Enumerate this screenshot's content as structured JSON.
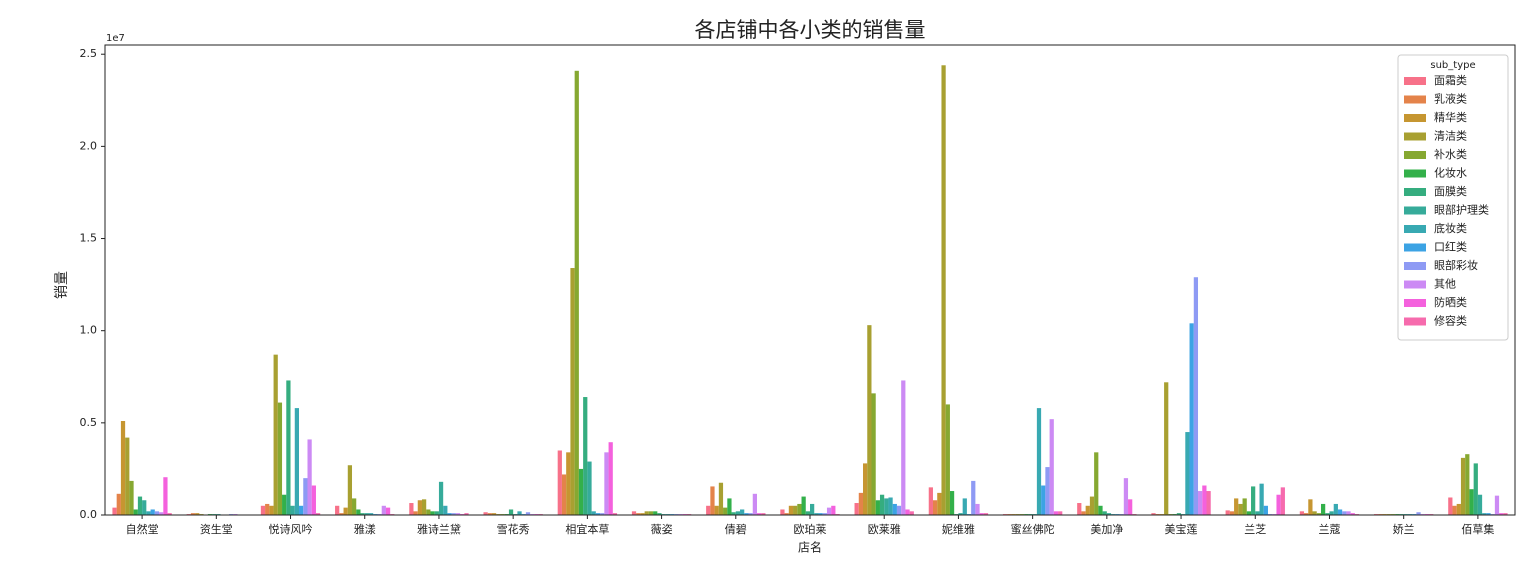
{
  "chart_data": {
    "type": "bar",
    "title": "各店铺中各小类的销售量",
    "xlabel": "店名",
    "ylabel": "销量",
    "y_offset_label": "1e7",
    "legend_title": "sub_type",
    "legend": "upper right",
    "grid": false,
    "ylim": [
      0,
      2.55
    ],
    "yticks": [
      {
        "value": 0,
        "label": "0.0"
      },
      0.5,
      {
        "value": 1,
        "label": "1.0"
      },
      1.5,
      {
        "value": 2,
        "label": "2.0"
      },
      2.5
    ],
    "categories": [
      "自然堂",
      "资生堂",
      "悦诗风吟",
      "雅漾",
      "雅诗兰黛",
      "雪花秀",
      "相宜本草",
      "薇姿",
      "倩碧",
      "欧珀莱",
      "欧莱雅",
      "妮维雅",
      "蜜丝佛陀",
      "美加净",
      "美宝莲",
      "兰芝",
      "兰蔻",
      "娇兰",
      "佰草集"
    ],
    "series": [
      {
        "name": "面霜类",
        "color": "#f77189",
        "values": [
          0.04,
          0.005,
          0.05,
          0.05,
          0.065,
          0.015,
          0.35,
          0.02,
          0.05,
          0.03,
          0.065,
          0.15,
          0.005,
          0.065,
          0.01,
          0.025,
          0.02,
          0.005,
          0.095
        ]
      },
      {
        "name": "乳液类",
        "color": "#e4834a",
        "values": [
          0.115,
          0.01,
          0.06,
          0.01,
          0.02,
          0.01,
          0.22,
          0.01,
          0.155,
          0.01,
          0.12,
          0.08,
          0.005,
          0.02,
          0.005,
          0.02,
          0.01,
          0.005,
          0.05
        ]
      },
      {
        "name": "精华类",
        "color": "#c69631",
        "values": [
          0.51,
          0.01,
          0.05,
          0.04,
          0.08,
          0.01,
          0.34,
          0.01,
          0.05,
          0.05,
          0.28,
          0.12,
          0.005,
          0.05,
          0.005,
          0.09,
          0.085,
          0.005,
          0.06
        ]
      },
      {
        "name": "清洁类",
        "color": "#a8a031",
        "values": [
          0.42,
          0.005,
          0.87,
          0.27,
          0.085,
          0.005,
          1.34,
          0.02,
          0.175,
          0.05,
          1.03,
          2.44,
          0.005,
          0.1,
          0.72,
          0.06,
          0.02,
          0.005,
          0.31
        ]
      },
      {
        "name": "补水类",
        "color": "#86a831",
        "values": [
          0.185,
          0.002,
          0.61,
          0.09,
          0.03,
          0.005,
          2.41,
          0.02,
          0.04,
          0.06,
          0.66,
          0.6,
          0.005,
          0.34,
          0.005,
          0.09,
          0.01,
          0.005,
          0.33
        ]
      },
      {
        "name": "化妆水",
        "color": "#33b04a",
        "values": [
          0.03,
          0.005,
          0.11,
          0.03,
          0.02,
          0.005,
          0.25,
          0.02,
          0.09,
          0.1,
          0.08,
          0.13,
          0.005,
          0.05,
          0.005,
          0.02,
          0.06,
          0.005,
          0.14
        ]
      },
      {
        "name": "面膜类",
        "color": "#35ad7f",
        "values": [
          0.1,
          0.005,
          0.73,
          0.01,
          0.02,
          0.03,
          0.64,
          0.01,
          0.015,
          0.02,
          0.11,
          0.005,
          0.005,
          0.02,
          0.01,
          0.155,
          0.01,
          0.005,
          0.28
        ]
      },
      {
        "name": "眼部护理类",
        "color": "#36ab9a",
        "values": [
          0.08,
          0.005,
          0.05,
          0.01,
          0.18,
          0.005,
          0.29,
          0.005,
          0.02,
          0.06,
          0.09,
          0.01,
          0.005,
          0.01,
          0.005,
          0.02,
          0.02,
          0.005,
          0.11
        ]
      },
      {
        "name": "底妆类",
        "color": "#38a9b2",
        "values": [
          0.02,
          0.002,
          0.58,
          0.01,
          0.05,
          0.02,
          0.02,
          0.005,
          0.03,
          0.01,
          0.095,
          0.09,
          0.58,
          0.005,
          0.45,
          0.17,
          0.06,
          0.005,
          0.01
        ]
      },
      {
        "name": "口红类",
        "color": "#3ca3e4",
        "values": [
          0.03,
          0.002,
          0.05,
          0.005,
          0.01,
          0.005,
          0.01,
          0.005,
          0.01,
          0.01,
          0.06,
          0.005,
          0.16,
          0.005,
          1.04,
          0.05,
          0.03,
          0.005,
          0.01
        ]
      },
      {
        "name": "眼部彩妆",
        "color": "#8e9af4",
        "values": [
          0.02,
          0.005,
          0.2,
          0.005,
          0.01,
          0.015,
          0.01,
          0.005,
          0.01,
          0.01,
          0.05,
          0.185,
          0.26,
          0.005,
          1.29,
          0.005,
          0.02,
          0.015,
          0.005
        ]
      },
      {
        "name": "其他",
        "color": "#cc8af4",
        "values": [
          0.015,
          0.005,
          0.41,
          0.05,
          0.01,
          0.005,
          0.34,
          0.005,
          0.115,
          0.04,
          0.73,
          0.06,
          0.52,
          0.2,
          0.13,
          0.005,
          0.02,
          0.005,
          0.105
        ]
      },
      {
        "name": "防晒类",
        "color": "#f461dd",
        "values": [
          0.205,
          0.002,
          0.16,
          0.04,
          0.005,
          0.005,
          0.395,
          0.005,
          0.01,
          0.05,
          0.03,
          0.01,
          0.02,
          0.085,
          0.16,
          0.11,
          0.01,
          0.005,
          0.01
        ]
      },
      {
        "name": "修容类",
        "color": "#f66bad",
        "values": [
          0.01,
          0.002,
          0.01,
          0.005,
          0.01,
          0.005,
          0.01,
          0.005,
          0.01,
          0.005,
          0.02,
          0.01,
          0.02,
          0.005,
          0.13,
          0.15,
          0.005,
          0.005,
          0.01
        ]
      }
    ]
  }
}
